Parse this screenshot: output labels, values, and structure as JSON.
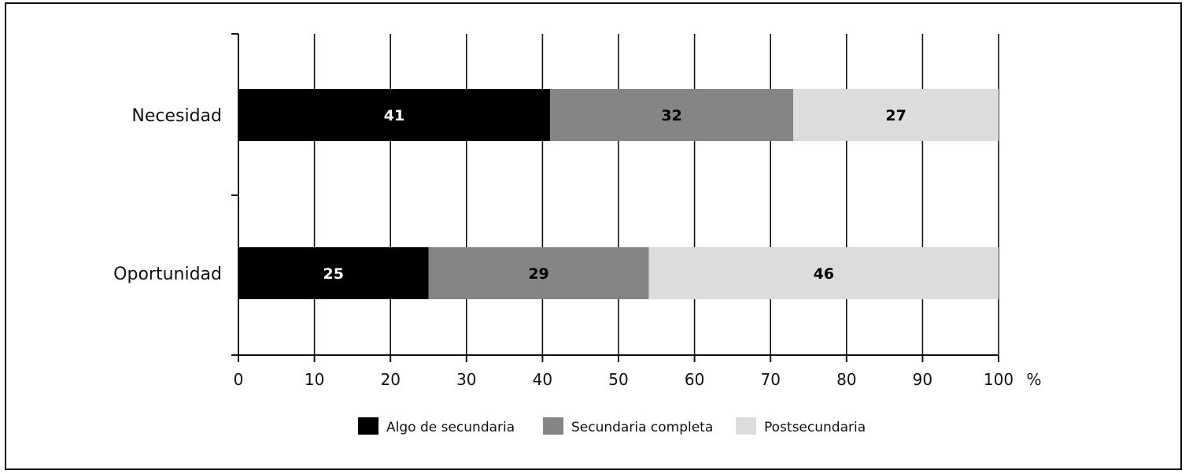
{
  "chart_data": {
    "type": "bar",
    "orientation": "horizontal",
    "stacked": true,
    "categories": [
      "Necesidad",
      "Oportunidad"
    ],
    "series": [
      {
        "name": "Algo de secundaria",
        "values": [
          41,
          25
        ],
        "color": "#000000",
        "label_color": "#ffffff"
      },
      {
        "name": "Secundaria completa",
        "values": [
          32,
          29
        ],
        "color": "#858585",
        "label_color": "#000000"
      },
      {
        "name": "Postsecundaria",
        "values": [
          27,
          46
        ],
        "color": "#dcdcdc",
        "label_color": "#000000"
      }
    ],
    "xlim": [
      0,
      100
    ],
    "xticks": [
      "0",
      "10",
      "20",
      "30",
      "40",
      "50",
      "60",
      "70",
      "80",
      "90",
      "100"
    ],
    "x_unit": "%",
    "grid": true,
    "legend_position": "bottom"
  }
}
